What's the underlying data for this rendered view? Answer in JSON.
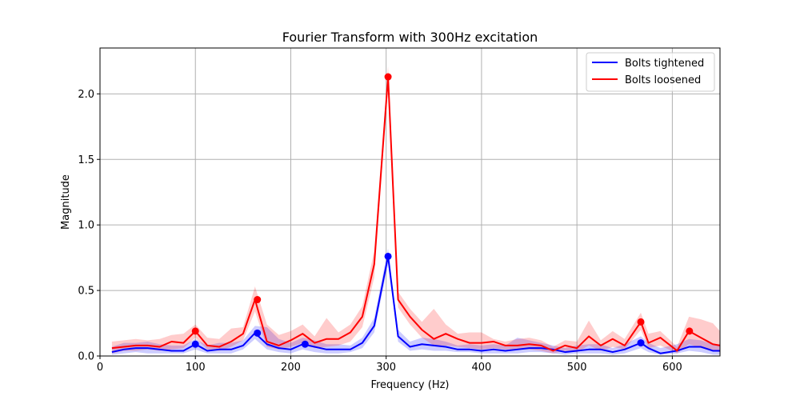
{
  "chart_data": {
    "type": "line",
    "title": "Fourier Transform with 300Hz excitation",
    "xlabel": "Frequency (Hz)",
    "ylabel": "Magnitude",
    "xlim": [
      0,
      650
    ],
    "ylim": [
      0,
      2.35
    ],
    "xticks": [
      0,
      100,
      200,
      300,
      400,
      500,
      600
    ],
    "yticks": [
      0.0,
      0.5,
      1.0,
      1.5,
      2.0
    ],
    "xtick_labels": [
      "0",
      "100",
      "200",
      "300",
      "400",
      "500",
      "600"
    ],
    "ytick_labels": [
      "0.0",
      "0.5",
      "1.0",
      "1.5",
      "2.0"
    ],
    "grid": true,
    "legend_position": "top-right",
    "x": [
      12.5,
      25,
      37.5,
      50,
      62.5,
      75,
      87.5,
      100,
      112.5,
      125,
      137.5,
      150,
      162.5,
      175,
      187.5,
      200,
      212.5,
      225,
      237.5,
      250,
      262.5,
      275,
      287.5,
      302,
      312.5,
      325,
      337.5,
      350,
      362.5,
      375,
      387.5,
      400,
      412.5,
      425,
      437.5,
      450,
      462.5,
      475,
      487.5,
      500,
      512.5,
      525,
      537.5,
      550,
      567,
      575,
      587.5,
      605,
      617.5,
      630,
      642.5,
      650
    ],
    "series": [
      {
        "name": "Bolts tightened",
        "color": "#0000ff",
        "band_color": "#0000ff",
        "values": [
          0.03,
          0.05,
          0.06,
          0.06,
          0.05,
          0.04,
          0.04,
          0.09,
          0.04,
          0.05,
          0.05,
          0.08,
          0.175,
          0.09,
          0.06,
          0.05,
          0.09,
          0.07,
          0.05,
          0.05,
          0.05,
          0.1,
          0.23,
          0.76,
          0.15,
          0.07,
          0.09,
          0.08,
          0.07,
          0.05,
          0.05,
          0.04,
          0.05,
          0.04,
          0.05,
          0.06,
          0.06,
          0.05,
          0.03,
          0.04,
          0.05,
          0.05,
          0.03,
          0.05,
          0.1,
          0.06,
          0.02,
          0.04,
          0.07,
          0.07,
          0.04,
          0.04
        ],
        "lower": [
          0.01,
          0.02,
          0.03,
          0.02,
          0.02,
          0.02,
          0.02,
          0.05,
          0.02,
          0.02,
          0.02,
          0.05,
          0.13,
          0.05,
          0.03,
          0.02,
          0.05,
          0.03,
          0.02,
          0.02,
          0.03,
          0.06,
          0.18,
          0.7,
          0.11,
          0.04,
          0.05,
          0.04,
          0.04,
          0.03,
          0.03,
          0.02,
          0.02,
          0.02,
          0.02,
          0.03,
          0.03,
          0.02,
          0.01,
          0.02,
          0.02,
          0.02,
          0.01,
          0.02,
          0.06,
          0.03,
          0.01,
          0.02,
          0.04,
          0.03,
          0.01,
          0.01
        ],
        "upper": [
          0.07,
          0.1,
          0.1,
          0.11,
          0.09,
          0.08,
          0.08,
          0.13,
          0.08,
          0.1,
          0.1,
          0.12,
          0.23,
          0.22,
          0.13,
          0.1,
          0.14,
          0.12,
          0.09,
          0.09,
          0.08,
          0.14,
          0.29,
          0.82,
          0.2,
          0.11,
          0.14,
          0.13,
          0.11,
          0.08,
          0.09,
          0.08,
          0.09,
          0.08,
          0.14,
          0.12,
          0.1,
          0.08,
          0.06,
          0.08,
          0.09,
          0.09,
          0.06,
          0.09,
          0.15,
          0.1,
          0.06,
          0.09,
          0.13,
          0.12,
          0.09,
          0.09
        ],
        "peaks": [
          [
            100,
            0.09
          ],
          [
            165,
            0.175
          ],
          [
            215,
            0.09
          ],
          [
            302,
            0.76
          ],
          [
            567,
            0.1
          ]
        ]
      },
      {
        "name": "Bolts loosened",
        "color": "#ff0000",
        "band_color": "#ff0000",
        "values": [
          0.06,
          0.07,
          0.08,
          0.08,
          0.07,
          0.11,
          0.1,
          0.19,
          0.08,
          0.07,
          0.11,
          0.17,
          0.43,
          0.11,
          0.08,
          0.12,
          0.17,
          0.1,
          0.13,
          0.13,
          0.18,
          0.3,
          0.7,
          2.13,
          0.43,
          0.3,
          0.2,
          0.13,
          0.17,
          0.13,
          0.1,
          0.1,
          0.11,
          0.08,
          0.08,
          0.09,
          0.08,
          0.04,
          0.08,
          0.06,
          0.15,
          0.08,
          0.13,
          0.08,
          0.26,
          0.1,
          0.14,
          0.04,
          0.19,
          0.14,
          0.09,
          0.08
        ],
        "lower": [
          0.02,
          0.04,
          0.04,
          0.05,
          0.04,
          0.05,
          0.06,
          0.14,
          0.05,
          0.04,
          0.07,
          0.12,
          0.34,
          0.07,
          0.05,
          0.07,
          0.1,
          0.06,
          0.07,
          0.08,
          0.11,
          0.22,
          0.6,
          2.05,
          0.37,
          0.24,
          0.14,
          0.08,
          0.08,
          0.07,
          0.06,
          0.05,
          0.06,
          0.05,
          0.05,
          0.05,
          0.04,
          0.02,
          0.04,
          0.03,
          0.08,
          0.04,
          0.07,
          0.05,
          0.2,
          0.06,
          0.08,
          0.02,
          0.09,
          0.06,
          0.04,
          0.03
        ],
        "upper": [
          0.11,
          0.12,
          0.13,
          0.12,
          0.13,
          0.16,
          0.17,
          0.24,
          0.14,
          0.13,
          0.21,
          0.22,
          0.53,
          0.24,
          0.16,
          0.19,
          0.24,
          0.15,
          0.29,
          0.18,
          0.24,
          0.38,
          0.8,
          2.21,
          0.49,
          0.36,
          0.26,
          0.36,
          0.24,
          0.17,
          0.18,
          0.18,
          0.13,
          0.11,
          0.13,
          0.14,
          0.12,
          0.07,
          0.12,
          0.11,
          0.27,
          0.12,
          0.19,
          0.13,
          0.33,
          0.17,
          0.19,
          0.07,
          0.3,
          0.28,
          0.25,
          0.19
        ],
        "peaks": [
          [
            100,
            0.19
          ],
          [
            165,
            0.43
          ],
          [
            302,
            2.13
          ],
          [
            567,
            0.26
          ],
          [
            618,
            0.19
          ]
        ]
      }
    ]
  }
}
